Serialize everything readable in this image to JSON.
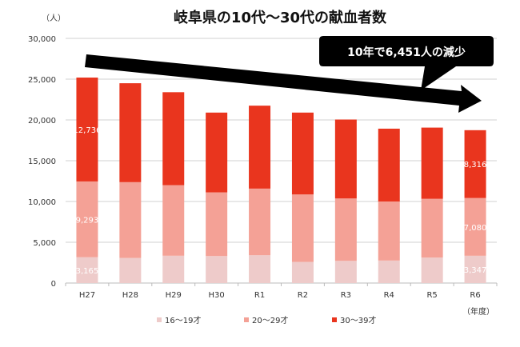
{
  "chart_data": {
    "type": "bar",
    "stacked": true,
    "title": "岐阜県の10代～30代の献血者数",
    "ylabel": "（人）",
    "xlabel": "（年度）",
    "ylim": [
      0,
      30000
    ],
    "yticks": [
      "0",
      "5,000",
      "10,000",
      "15,000",
      "20,000",
      "25,000",
      "30,000"
    ],
    "grid": true,
    "legend_position": "bottom",
    "categories": [
      "H27",
      "H28",
      "H29",
      "H30",
      "R1",
      "R2",
      "R3",
      "R4",
      "R5",
      "R6"
    ],
    "series": [
      {
        "name": "16～19才",
        "color": "#eecbca",
        "values": [
          3165,
          3080,
          3350,
          3310,
          3410,
          2590,
          2720,
          2760,
          3120,
          3347
        ]
      },
      {
        "name": "20～29才",
        "color": "#f4a196",
        "values": [
          9293,
          9290,
          8650,
          7810,
          8170,
          8270,
          7650,
          7240,
          7210,
          7080
        ]
      },
      {
        "name": "30～39才",
        "color": "#e9351e",
        "values": [
          12736,
          12130,
          11400,
          9780,
          10170,
          10040,
          9680,
          8930,
          8730,
          8316
        ]
      }
    ],
    "data_labels": [
      {
        "category": "H27",
        "series": 0,
        "text": "3,165"
      },
      {
        "category": "H27",
        "series": 1,
        "text": "9,293"
      },
      {
        "category": "H27",
        "series": 2,
        "text": "12,736"
      },
      {
        "category": "R6",
        "series": 0,
        "text": "3,347"
      },
      {
        "category": "R6",
        "series": 1,
        "text": "7,080"
      },
      {
        "category": "R6",
        "series": 2,
        "text": "8,316"
      }
    ],
    "annotation": "10年で6,451人の減少"
  }
}
